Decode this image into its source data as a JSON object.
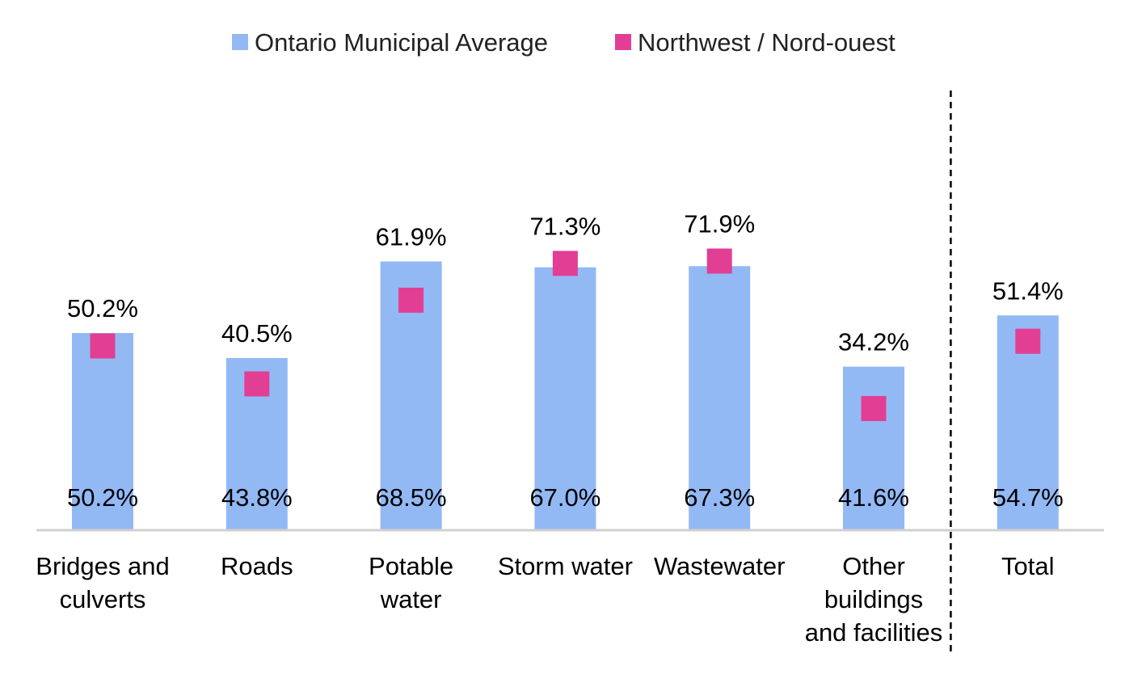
{
  "chart_data": {
    "type": "bar",
    "categories": [
      [
        "Bridges and",
        "culverts"
      ],
      [
        "Roads"
      ],
      [
        "Potable",
        "water"
      ],
      [
        "Storm water"
      ],
      [
        "Wastewater"
      ],
      [
        "Other",
        "buildings",
        "and facilities"
      ],
      [
        "Total"
      ]
    ],
    "series": [
      {
        "name": "Ontario Municipal Average",
        "kind": "bar",
        "color": "#93b9f5",
        "values": [
          50.2,
          43.8,
          68.5,
          67.0,
          67.3,
          41.6,
          54.7
        ],
        "labels": [
          "50.2%",
          "43.8%",
          "68.5%",
          "67.0%",
          "67.3%",
          "41.6%",
          "54.7%"
        ]
      },
      {
        "name": "Northwest / Nord-ouest",
        "kind": "marker",
        "color": "#e23f94",
        "values": [
          50.2,
          40.5,
          61.9,
          71.3,
          71.9,
          34.2,
          51.4
        ],
        "labels": [
          "50.2%",
          "40.5%",
          "61.9%",
          "71.3%",
          "71.9%",
          "34.2%",
          "51.4%"
        ]
      }
    ],
    "ylim": [
      0,
      100
    ],
    "legend_position": "top-center",
    "separator_before": "Total",
    "grid": false
  }
}
